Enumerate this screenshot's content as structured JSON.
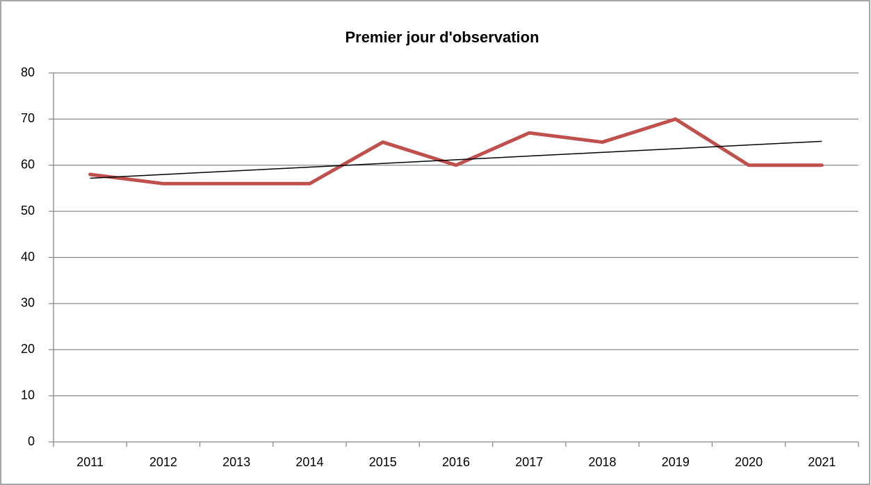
{
  "chart_data": {
    "type": "line",
    "title": "Premier jour d'observation",
    "categories": [
      "2011",
      "2012",
      "2013",
      "2014",
      "2015",
      "2016",
      "2017",
      "2018",
      "2019",
      "2020",
      "2021"
    ],
    "series": [
      {
        "color": "#c0504d",
        "values": [
          58,
          56,
          56,
          56,
          65,
          60,
          67,
          65,
          70,
          60,
          60
        ]
      }
    ],
    "trendline": "linear",
    "trendline_color": "#000000",
    "ylim": [
      0,
      80
    ],
    "yticks": [
      0,
      10,
      20,
      30,
      40,
      50,
      60,
      70,
      80
    ],
    "grid": true
  }
}
